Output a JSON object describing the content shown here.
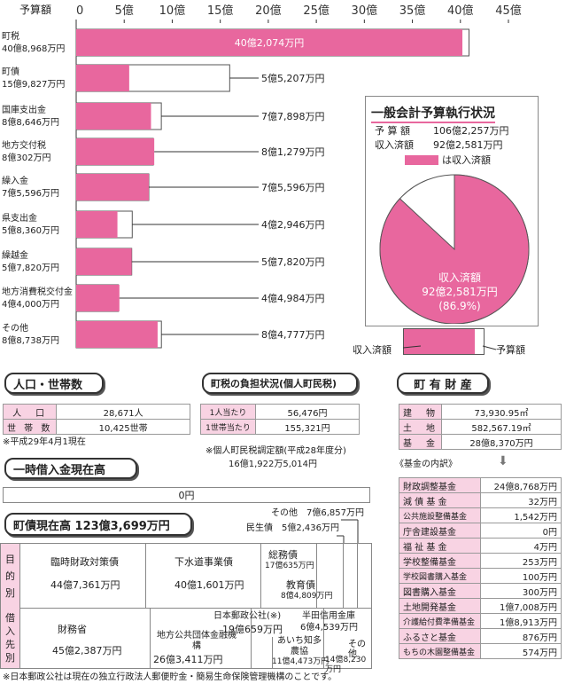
{
  "chart_data": {
    "type": "bar",
    "orientation": "horizontal",
    "axis_title": "予算額",
    "ticks": [
      "0",
      "5億",
      "10億",
      "15億",
      "20億",
      "25億",
      "30億",
      "35億",
      "40億",
      "45億"
    ],
    "xlim": [
      0,
      45
    ],
    "unit": "億円",
    "categories": [
      {
        "name": "町税",
        "budget_label": "40億8,968万円",
        "received_label": "40億2,074万円",
        "budget": 40.8968,
        "received": 40.2074
      },
      {
        "name": "町債",
        "budget_label": "15億9,827万円",
        "received_label": "5億5,207万円",
        "budget": 15.9827,
        "received": 5.5207
      },
      {
        "name": "国庫支出金",
        "budget_label": "8億8,646万円",
        "received_label": "7億7,898万円",
        "budget": 8.8646,
        "received": 7.7898
      },
      {
        "name": "地方交付税",
        "budget_label": "8億302万円",
        "received_label": "8億1,279万円",
        "budget": 8.0302,
        "received": 8.1279
      },
      {
        "name": "繰入金",
        "budget_label": "7億5,596万円",
        "received_label": "7億5,596万円",
        "budget": 7.5596,
        "received": 7.5596
      },
      {
        "name": "県支出金",
        "budget_label": "5億8,360万円",
        "received_label": "4億2,946万円",
        "budget": 5.836,
        "received": 4.2946
      },
      {
        "name": "繰越金",
        "budget_label": "5億7,820万円",
        "received_label": "5億7,820万円",
        "budget": 5.782,
        "received": 5.782
      },
      {
        "name": "地方消費税交付金",
        "budget_label": "4億4,000万円",
        "received_label": "4億4,984万円",
        "budget": 4.4,
        "received": 4.4984
      },
      {
        "name": "その他",
        "budget_label": "8億8,738万円",
        "received_label": "8億4,777万円",
        "budget": 8.8738,
        "received": 8.4777
      }
    ],
    "legend": {
      "received": "収入済額",
      "budget": "予算額"
    },
    "colors": {
      "received": "#e8679e",
      "budget": "#ffffff"
    }
  },
  "summary": {
    "title": "一般会計予算執行状況",
    "budget_label": "予 算 額",
    "budget_value": "106億2,257万円",
    "received_label": "収入済額",
    "received_value": "92億2,581万円",
    "legend_text": "は収入済額",
    "pie_line1": "収入済額",
    "pie_line2": "92億2,581万円",
    "pie_line3": "(86.9%)",
    "percent": 86.9
  },
  "population": {
    "title": "人口・世帯数",
    "rows": [
      {
        "label": "人　口",
        "value": "28,671人"
      },
      {
        "label": "世 帯 数",
        "value": "10,425世帯"
      }
    ],
    "note": "※平成29年4月1現在"
  },
  "tax_burden": {
    "title": "町税の負担状況(個人町民税)",
    "rows": [
      {
        "label": "1人当たり",
        "value": "56,476円"
      },
      {
        "label": "1世帯当たり",
        "value": "155,321円"
      }
    ],
    "note1": "※個人町民税調定額(平成28年度分)",
    "note2": "16億1,922万5,014円"
  },
  "property": {
    "title": "町 有 財 産",
    "rows": [
      {
        "label": "建　物",
        "value": "73,930.95㎡"
      },
      {
        "label": "土　地",
        "value": "582,567.19㎡"
      },
      {
        "label": "基　金",
        "value": "28億8,370万円"
      }
    ],
    "fund_heading": "《基金の内訳》",
    "funds": [
      {
        "label": "財政調整基金",
        "value": "24億8,768万円"
      },
      {
        "label": "減 債 基 金",
        "value": "32万円"
      },
      {
        "label": "公共施設整備基金",
        "value": "1,542万円"
      },
      {
        "label": "庁舎建設基金",
        "value": "0円"
      },
      {
        "label": "福 祉 基 金",
        "value": "4万円"
      },
      {
        "label": "学校整備基金",
        "value": "253万円"
      },
      {
        "label": "学校図書購入基金",
        "value": "100万円"
      },
      {
        "label": "図書購入基金",
        "value": "300万円"
      },
      {
        "label": "土地開発基金",
        "value": "1億7,008万円"
      },
      {
        "label": "介護給付費準備基金",
        "value": "1億8,913万円"
      },
      {
        "label": "ふるさと基金",
        "value": "876万円"
      },
      {
        "label": "もちの木園整備基金",
        "value": "574万円"
      }
    ]
  },
  "loan": {
    "title": "一時借入金現在高",
    "value": "0円"
  },
  "debt": {
    "title": "町債現在高 123億3,699万円",
    "purpose_label": "目的別",
    "lender_label": "借入先別",
    "callout_other": "その他　7億6,857万円",
    "callout_welfare": "民生債　5億2,436万円",
    "purpose": [
      {
        "name": "臨時財政対策債",
        "value": "44億7,361万円"
      },
      {
        "name": "下水道事業債",
        "value": "40億1,601万円"
      },
      {
        "name": "総務債",
        "value": "17億635万円"
      },
      {
        "name": "教育債",
        "value": "8億4,809万円"
      }
    ],
    "lender": [
      {
        "name": "財務省",
        "value": "45億2,387万円"
      },
      {
        "name": "地方公共団体金融機構",
        "value": "26億3,411万円"
      },
      {
        "name": "日本郵政公社(※)",
        "value": "19億659万円"
      },
      {
        "name": "半田信用金庫",
        "value": "6億4,539万円"
      },
      {
        "name": "あいち知多農協",
        "value": "11億4,473万円"
      },
      {
        "name": "その他",
        "value": "14億8,230万円"
      }
    ],
    "footnote": "※日本郵政公社は現在の独立行政法人郵便貯金・簡易生命保険管理機構のことです。"
  }
}
